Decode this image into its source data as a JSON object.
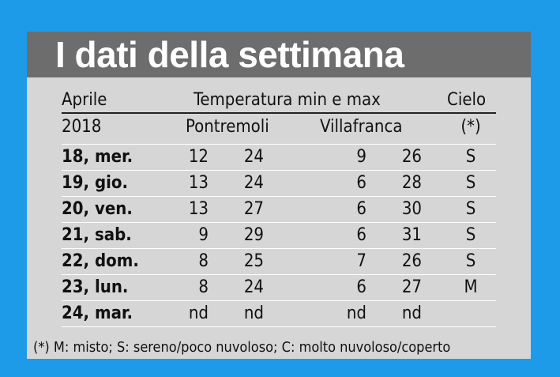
{
  "title": "I dati della settimana",
  "header": {
    "col_month": "Aprile",
    "col_temp": "Temperatura min e max",
    "col_sky": "Cielo",
    "year": "2018",
    "city1": "Pontremoli",
    "city2": "Villafranca",
    "sky_note": "(*)"
  },
  "rows": [
    {
      "day": "18, mer.",
      "p_min": "12",
      "p_max": "24",
      "v_min": "9",
      "v_max": "26",
      "sky": "S"
    },
    {
      "day": "19, gio.",
      "p_min": "13",
      "p_max": "24",
      "v_min": "6",
      "v_max": "28",
      "sky": "S"
    },
    {
      "day": "20, ven.",
      "p_min": "13",
      "p_max": "27",
      "v_min": "6",
      "v_max": "30",
      "sky": "S"
    },
    {
      "day": "21, sab.",
      "p_min": "9",
      "p_max": "29",
      "v_min": "6",
      "v_max": "31",
      "sky": "S"
    },
    {
      "day": "22, dom.",
      "p_min": "8",
      "p_max": "25",
      "v_min": "7",
      "v_max": "26",
      "sky": "S"
    },
    {
      "day": "23, lun.",
      "p_min": "8",
      "p_max": "24",
      "v_min": "6",
      "v_max": "27",
      "sky": "M"
    },
    {
      "day": "24, mar.",
      "p_min": "nd",
      "p_max": "nd",
      "v_min": "nd",
      "v_max": "nd",
      "sky": ""
    }
  ],
  "footnote": "(*) M: misto; S: sereno/poco nuvoloso; C: molto nuvoloso/coperto",
  "colors": {
    "background": "#1e9be8",
    "panel": "#d6d6d6",
    "title_bar": "#6d6d6d",
    "title_text": "#ffffff"
  }
}
